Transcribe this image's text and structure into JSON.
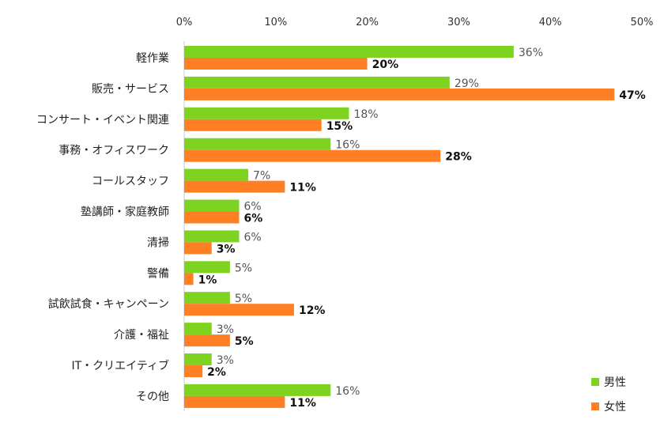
{
  "chart_data": {
    "type": "bar",
    "orientation": "horizontal",
    "title": "",
    "xlabel": "",
    "ylabel": "",
    "xlim": [
      0,
      50
    ],
    "x_ticks": [
      "0%",
      "10%",
      "20%",
      "30%",
      "40%",
      "50%"
    ],
    "x_tick_values": [
      0,
      10,
      20,
      30,
      40,
      50
    ],
    "categories": [
      "軽作業",
      "販売・サービス",
      "コンサート・イベント関連",
      "事務・オフィスワーク",
      "コールスタッフ",
      "塾講師・家庭教師",
      "清掃",
      "警備",
      "試飲試食・キャンペーン",
      "介護・福祉",
      "IT・クリエイティブ",
      "その他"
    ],
    "series": [
      {
        "name": "男性",
        "color": "#7ed321",
        "values": [
          36,
          29,
          18,
          16,
          7,
          6,
          6,
          5,
          5,
          3,
          3,
          16
        ],
        "labels": [
          "36%",
          "29%",
          "18%",
          "16%",
          "7%",
          "6%",
          "6%",
          "5%",
          "5%",
          "3%",
          "3%",
          "16%"
        ]
      },
      {
        "name": "女性",
        "color": "#ff7f24",
        "values": [
          20,
          47,
          15,
          28,
          11,
          6,
          3,
          1,
          12,
          5,
          2,
          11
        ],
        "labels": [
          "20%",
          "47%",
          "15%",
          "28%",
          "11%",
          "6%",
          "3%",
          "1%",
          "12%",
          "5%",
          "2%",
          "11%"
        ]
      }
    ],
    "legend_position": "bottom-right",
    "grid": false
  }
}
